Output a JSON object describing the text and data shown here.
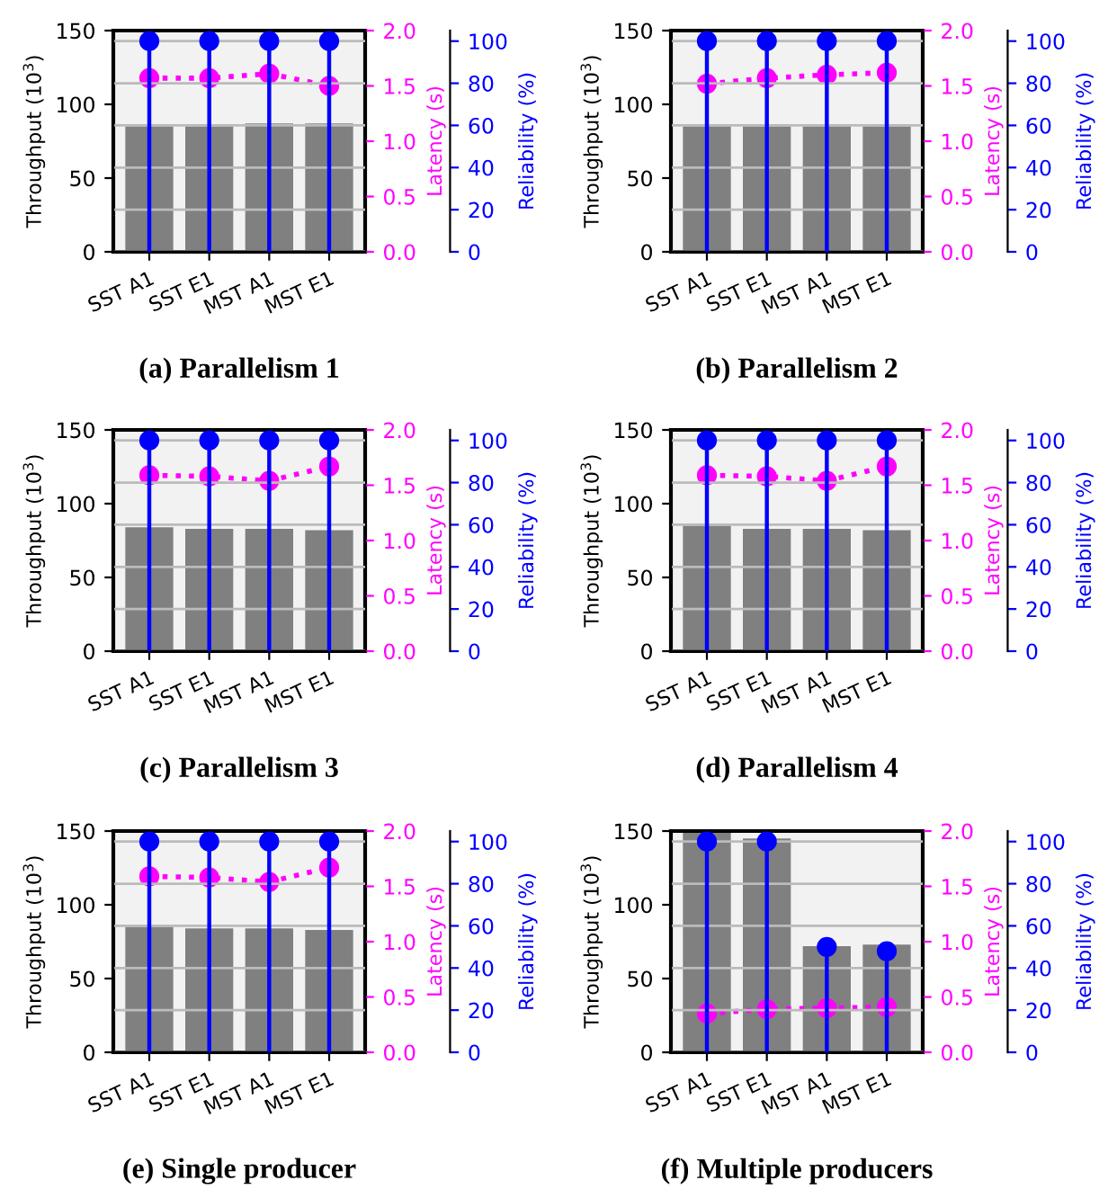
{
  "chart_data": [
    {
      "type": "bar",
      "title": "(a) Parallelism 1",
      "ylabel": "Throughput (10$^{3}$)",
      "y2label": "Latency (s)",
      "y3label": "Reliability (%)",
      "categories": [
        "SST A1",
        "SST E1",
        "MST A1",
        "MST E1"
      ],
      "series": [
        {
          "color": "#808080",
          "values": [
            85,
            85,
            87,
            87
          ]
        },
        {
          "type": "line",
          "axis": "y2",
          "color": "#ff00ff",
          "line_style": "dotted",
          "marker": "circle",
          "values": [
            1.57,
            1.57,
            1.61,
            1.5
          ]
        },
        {
          "type": "lollipop",
          "axis": "y3",
          "color": "#0000ff",
          "values": [
            100,
            100,
            100,
            100
          ]
        }
      ],
      "ylim": [
        0,
        150
      ],
      "yticks": [
        0,
        50,
        100,
        150
      ],
      "y2lim": [
        0,
        2
      ],
      "y2ticks": [
        {
          "value": 0,
          "label": "0.0"
        },
        {
          "value": 0.5,
          "label": "0.5"
        },
        {
          "value": 1,
          "label": "1.0"
        },
        {
          "value": 1.5,
          "label": "1.5"
        },
        {
          "value": 2,
          "label": "2.0"
        }
      ],
      "y3lim": [
        0,
        105
      ],
      "y3ticks": [
        0,
        20,
        40,
        60,
        80,
        100
      ],
      "grid": true
    },
    {
      "type": "bar",
      "title": "(b) Parallelism 2",
      "ylabel": "Throughput (10$^{3}$)",
      "y2label": "Latency (s)",
      "y3label": "Reliability (%)",
      "categories": [
        "SST A1",
        "SST E1",
        "MST A1",
        "MST E1"
      ],
      "series": [
        {
          "color": "#808080",
          "values": [
            85,
            85,
            85,
            85
          ]
        },
        {
          "type": "line",
          "axis": "y2",
          "color": "#ff00ff",
          "line_style": "dotted",
          "marker": "circle",
          "values": [
            1.52,
            1.57,
            1.6,
            1.62
          ]
        },
        {
          "type": "lollipop",
          "axis": "y3",
          "color": "#0000ff",
          "values": [
            100,
            100,
            100,
            100
          ]
        }
      ],
      "ylim": [
        0,
        150
      ],
      "yticks": [
        0,
        50,
        100,
        150
      ],
      "y2lim": [
        0,
        2
      ],
      "y2ticks": [
        {
          "value": 0,
          "label": "0.0"
        },
        {
          "value": 0.5,
          "label": "0.5"
        },
        {
          "value": 1,
          "label": "1.0"
        },
        {
          "value": 1.5,
          "label": "1.5"
        },
        {
          "value": 2,
          "label": "2.0"
        }
      ],
      "y3lim": [
        0,
        105
      ],
      "y3ticks": [
        0,
        20,
        40,
        60,
        80,
        100
      ],
      "grid": true
    },
    {
      "type": "bar",
      "title": "(c) Parallelism 3",
      "ylabel": "Throughput (10$^{3}$)",
      "y2label": "Latency (s)",
      "y3label": "Reliability (%)",
      "categories": [
        "SST A1",
        "SST E1",
        "MST A1",
        "MST E1"
      ],
      "series": [
        {
          "color": "#808080",
          "values": [
            84,
            83,
            83,
            82
          ]
        },
        {
          "type": "line",
          "axis": "y2",
          "color": "#ff00ff",
          "line_style": "dotted",
          "marker": "circle",
          "values": [
            1.59,
            1.58,
            1.54,
            1.67
          ]
        },
        {
          "type": "lollipop",
          "axis": "y3",
          "color": "#0000ff",
          "values": [
            100,
            100,
            100,
            100
          ]
        }
      ],
      "ylim": [
        0,
        150
      ],
      "yticks": [
        0,
        50,
        100,
        150
      ],
      "y2lim": [
        0,
        2
      ],
      "y2ticks": [
        {
          "value": 0,
          "label": "0.0"
        },
        {
          "value": 0.5,
          "label": "0.5"
        },
        {
          "value": 1,
          "label": "1.0"
        },
        {
          "value": 1.5,
          "label": "1.5"
        },
        {
          "value": 2,
          "label": "2.0"
        }
      ],
      "y3lim": [
        0,
        105
      ],
      "y3ticks": [
        0,
        20,
        40,
        60,
        80,
        100
      ],
      "grid": true
    },
    {
      "type": "bar",
      "title": "(d) Parallelism 4",
      "ylabel": "Throughput (10$^{3}$)",
      "y2label": "Latency (s)",
      "y3label": "Reliability (%)",
      "categories": [
        "SST A1",
        "SST E1",
        "MST A1",
        "MST E1"
      ],
      "series": [
        {
          "color": "#808080",
          "values": [
            85,
            83,
            83,
            82
          ]
        },
        {
          "type": "line",
          "axis": "y2",
          "color": "#ff00ff",
          "line_style": "dotted",
          "marker": "circle",
          "values": [
            1.59,
            1.58,
            1.54,
            1.67
          ]
        },
        {
          "type": "lollipop",
          "axis": "y3",
          "color": "#0000ff",
          "values": [
            100,
            100,
            100,
            100
          ]
        }
      ],
      "ylim": [
        0,
        150
      ],
      "yticks": [
        0,
        50,
        100,
        150
      ],
      "y2lim": [
        0,
        2
      ],
      "y2ticks": [
        {
          "value": 0,
          "label": "0.0"
        },
        {
          "value": 0.5,
          "label": "0.5"
        },
        {
          "value": 1,
          "label": "1.0"
        },
        {
          "value": 1.5,
          "label": "1.5"
        },
        {
          "value": 2,
          "label": "2.0"
        }
      ],
      "y3lim": [
        0,
        105
      ],
      "y3ticks": [
        0,
        20,
        40,
        60,
        80,
        100
      ],
      "grid": true
    },
    {
      "type": "bar",
      "title": "(e) Single producer",
      "ylabel": "Throughput (10$^{3}$)",
      "y2label": "Latency (s)",
      "y3label": "Reliability (%)",
      "categories": [
        "SST A1",
        "SST E1",
        "MST A1",
        "MST E1"
      ],
      "series": [
        {
          "color": "#808080",
          "values": [
            85,
            84,
            84,
            83
          ]
        },
        {
          "type": "line",
          "axis": "y2",
          "color": "#ff00ff",
          "line_style": "dotted",
          "marker": "circle",
          "values": [
            1.59,
            1.58,
            1.54,
            1.67
          ]
        },
        {
          "type": "lollipop",
          "axis": "y3",
          "color": "#0000ff",
          "values": [
            100,
            100,
            100,
            100
          ]
        }
      ],
      "ylim": [
        0,
        150
      ],
      "yticks": [
        0,
        50,
        100,
        150
      ],
      "y2lim": [
        0,
        2
      ],
      "y2ticks": [
        {
          "value": 0,
          "label": "0.0"
        },
        {
          "value": 0.5,
          "label": "0.5"
        },
        {
          "value": 1,
          "label": "1.0"
        },
        {
          "value": 1.5,
          "label": "1.5"
        },
        {
          "value": 2,
          "label": "2.0"
        }
      ],
      "y3lim": [
        0,
        105
      ],
      "y3ticks": [
        0,
        20,
        40,
        60,
        80,
        100
      ],
      "grid": true
    },
    {
      "type": "bar",
      "title": "(f) Multiple producers",
      "ylabel": "Throughput (10$^{3}$)",
      "y2label": "Latency (s)",
      "y3label": "Reliability (%)",
      "categories": [
        "SST A1",
        "SST E1",
        "MST A1",
        "MST E1"
      ],
      "series": [
        {
          "color": "#808080",
          "values": [
            150,
            145,
            72,
            73
          ]
        },
        {
          "type": "line",
          "axis": "y2",
          "color": "#ff00ff",
          "line_style": "dotted",
          "marker": "circle",
          "values": [
            0.35,
            0.39,
            0.4,
            0.41
          ]
        },
        {
          "type": "lollipop",
          "axis": "y3",
          "color": "#0000ff",
          "values": [
            100,
            100,
            50,
            48
          ]
        }
      ],
      "ylim": [
        0,
        150
      ],
      "yticks": [
        0,
        50,
        100,
        150
      ],
      "y2lim": [
        0,
        2
      ],
      "y2ticks": [
        {
          "value": 0,
          "label": "0.0"
        },
        {
          "value": 0.5,
          "label": "0.5"
        },
        {
          "value": 1,
          "label": "1.0"
        },
        {
          "value": 1.5,
          "label": "1.5"
        },
        {
          "value": 2,
          "label": "2.0"
        }
      ],
      "y3lim": [
        0,
        105
      ],
      "y3ticks": [
        0,
        20,
        40,
        60,
        80,
        100
      ],
      "grid": true
    }
  ]
}
